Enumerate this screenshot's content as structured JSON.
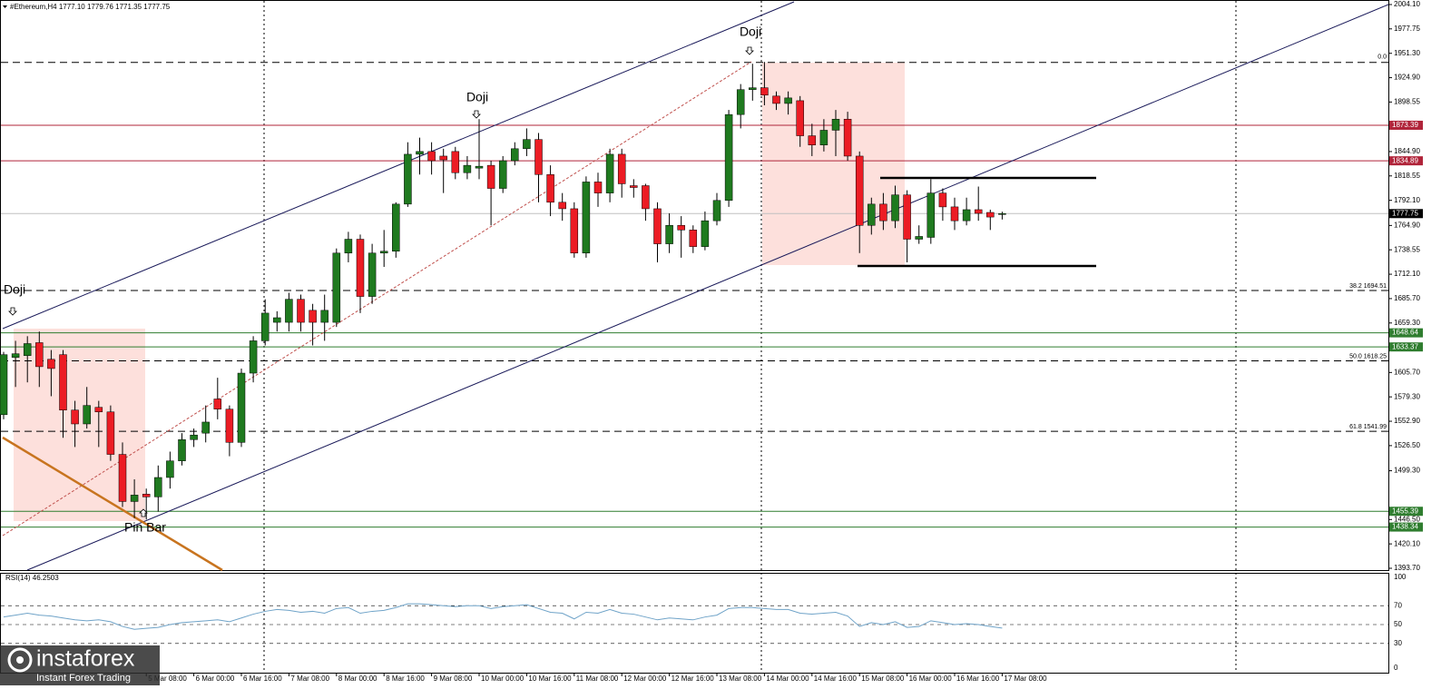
{
  "chart_data": {
    "type": "candlestick",
    "symbol": "#Ethereum,H4",
    "header_values": [
      "1777.10",
      "1779.76",
      "1771.35",
      "1777.75"
    ],
    "categories": [
      null,
      null,
      null,
      null,
      null,
      null,
      null,
      null,
      null,
      null,
      null,
      null,
      "5 Mar 08:00",
      null,
      null,
      null,
      "6 Mar 00:00",
      null,
      null,
      null,
      "6 Mar 16:00",
      null,
      null,
      null,
      "7 Mar 08:00",
      null,
      null,
      null,
      "8 Mar 00:00",
      null,
      null,
      null,
      "8 Mar 16:00",
      null,
      null,
      null,
      "9 Mar 08:00",
      null,
      null,
      null,
      "10 Mar 00:00",
      null,
      null,
      null,
      "10 Mar 16:00",
      null,
      null,
      null,
      "11 Mar 08:00",
      null,
      null,
      null,
      "12 Mar 00:00",
      null,
      null,
      null,
      "12 Mar 16:00",
      null,
      null,
      null,
      "13 Mar 08:00",
      null,
      null,
      null,
      "14 Mar 00:00",
      null,
      null,
      null,
      "14 Mar 16:00",
      null,
      null,
      null,
      "15 Mar 08:00",
      null,
      null,
      null,
      "16 Mar 00:00",
      null,
      null,
      null,
      "16 Mar 16:00",
      null,
      null,
      null,
      "17 Mar 08:00"
    ],
    "open": [
      1560,
      1622,
      1624,
      1638,
      1620,
      1625,
      1565,
      1550,
      1568,
      1563,
      1517,
      1466,
      1474,
      1471,
      1492,
      1510,
      1533,
      1540,
      1577,
      1566,
      1530,
      1605,
      1640,
      1660,
      1660,
      1685,
      1673,
      1660,
      1660,
      1735,
      1750,
      1688,
      1735,
      1737,
      1788,
      1842,
      1845,
      1840,
      1845,
      1822,
      1827,
      1830,
      1805,
      1835,
      1848,
      1858,
      1820,
      1790,
      1783,
      1735,
      1812,
      1800,
      1842,
      1808,
      1808,
      1783,
      1745,
      1765,
      1760,
      1742,
      1770,
      1792,
      1885,
      1912,
      1914,
      1905,
      1897,
      1900,
      1862,
      1852,
      1868,
      1880,
      1840,
      1765,
      1788,
      1770,
      1798,
      1750,
      1752,
      1800,
      1785,
      1770,
      1782,
      1779,
      1777.1
    ],
    "high": [
      1628,
      1640,
      1645,
      1650,
      1630,
      1630,
      1575,
      1590,
      1575,
      1570,
      1530,
      1490,
      1480,
      1505,
      1520,
      1540,
      1545,
      1570,
      1600,
      1570,
      1610,
      1645,
      1685,
      1672,
      1692,
      1690,
      1680,
      1690,
      1740,
      1758,
      1755,
      1745,
      1760,
      1790,
      1855,
      1860,
      1855,
      1848,
      1850,
      1840,
      1880,
      1835,
      1840,
      1855,
      1870,
      1865,
      1830,
      1800,
      1790,
      1818,
      1822,
      1848,
      1848,
      1815,
      1810,
      1790,
      1778,
      1775,
      1765,
      1780,
      1800,
      1890,
      1918,
      1940,
      1942,
      1910,
      1910,
      1905,
      1875,
      1880,
      1890,
      1888,
      1845,
      1795,
      1800,
      1808,
      1803,
      1765,
      1815,
      1805,
      1795,
      1795,
      1807,
      1782,
      1779.76
    ],
    "low": [
      1555,
      1590,
      1595,
      1590,
      1580,
      1535,
      1525,
      1545,
      1525,
      1510,
      1460,
      1448,
      1446.5,
      1455,
      1480,
      1505,
      1525,
      1530,
      1555,
      1515,
      1525,
      1595,
      1635,
      1650,
      1650,
      1650,
      1635,
      1640,
      1655,
      1725,
      1670,
      1680,
      1720,
      1730,
      1785,
      1820,
      1820,
      1800,
      1815,
      1815,
      1815,
      1765,
      1800,
      1830,
      1840,
      1790,
      1775,
      1770,
      1730,
      1730,
      1785,
      1790,
      1795,
      1795,
      1770,
      1725,
      1735,
      1730,
      1735,
      1738,
      1765,
      1785,
      1870,
      1900,
      1895,
      1890,
      1885,
      1850,
      1840,
      1845,
      1840,
      1835,
      1735,
      1755,
      1760,
      1762,
      1725,
      1745,
      1745,
      1770,
      1760,
      1765,
      1770,
      1760,
      1771.35
    ],
    "close": [
      1625,
      1626,
      1637,
      1612,
      1610,
      1565,
      1550,
      1570,
      1563,
      1517,
      1466,
      1473,
      1471,
      1492,
      1510,
      1533,
      1538,
      1552,
      1566,
      1530,
      1605,
      1640,
      1670,
      1665,
      1685,
      1660,
      1660,
      1673,
      1735,
      1750,
      1688,
      1735,
      1737,
      1788,
      1842,
      1845,
      1835,
      1836,
      1822,
      1830,
      1829,
      1805,
      1835,
      1848,
      1858,
      1820,
      1790,
      1783,
      1735,
      1812,
      1800,
      1842,
      1810,
      1806,
      1783,
      1745,
      1765,
      1760,
      1742,
      1770,
      1792,
      1885,
      1912,
      1914,
      1906,
      1897,
      1903,
      1862,
      1852,
      1868,
      1880,
      1840,
      1765,
      1788,
      1770,
      1798,
      1750,
      1753,
      1800,
      1785,
      1770,
      1782,
      1778,
      1774,
      1777.75
    ],
    "up_color": "#1f7a1f",
    "down_color": "#ec1c24",
    "ylim": [
      1393.7,
      2004.1
    ],
    "yticks": [
      {
        "value": 2004.1,
        "label": "2004.10"
      },
      1977.75,
      {
        "value": 1951.3,
        "label": "1951.30"
      },
      {
        "value": 1924.9,
        "label": "1924.90"
      },
      1898.55,
      {
        "value": 1844.9,
        "label": "1844.90"
      },
      1818.55,
      {
        "value": 1792.1,
        "label": "1792.10"
      },
      {
        "value": 1764.9,
        "label": "1764.90"
      },
      1738.55,
      {
        "value": 1712.1,
        "label": "1712.10"
      },
      {
        "value": 1685.7,
        "label": "1685.70"
      },
      {
        "value": 1659.3,
        "label": "1659.30"
      },
      {
        "value": 1605.7,
        "label": "1605.70"
      },
      {
        "value": 1579.3,
        "label": "1579.30"
      },
      {
        "value": 1552.9,
        "label": "1552.90"
      },
      {
        "value": 1526.5,
        "label": "1526.50"
      },
      {
        "value": 1499.3,
        "label": "1499.30"
      },
      {
        "value": 1446.5,
        "label": "1446.50"
      },
      {
        "value": 1420.1,
        "label": "1420.10"
      },
      {
        "value": 1393.7,
        "label": "1393.70"
      }
    ],
    "levels": [
      {
        "value": 1873.39,
        "color": "#b0243a"
      },
      {
        "value": 1834.89,
        "color": "#b0243a"
      },
      {
        "value": 1648.64,
        "color": "#2f7d2f"
      },
      {
        "value": 1633.37,
        "color": "#2f7d2f"
      },
      {
        "value": 1455.39,
        "color": "#2f7d2f"
      },
      {
        "value": 1438.34,
        "color": "#2f7d2f"
      }
    ],
    "fib_base": {
      "ratio": "0.0",
      "value": 1941.4
    },
    "fib_levels": [
      {
        "ratio": "38.2",
        "value": 1694.51
      },
      {
        "ratio": "50.0",
        "value": 1618.25
      },
      {
        "ratio": "61.8",
        "value": 1541.99
      }
    ],
    "annotations": [
      "Doji",
      "Doji",
      "Doji",
      "Pin Bar"
    ],
    "rsi": {
      "label": "RSI(14) 46.2503",
      "color": "#6fa3c8",
      "ylim": [
        0,
        100
      ],
      "yticks": [
        100,
        70,
        50,
        30,
        0
      ],
      "values": [
        58,
        60,
        62,
        60,
        59,
        57,
        55,
        54,
        55,
        53,
        48,
        45,
        46,
        47,
        50,
        52,
        53,
        54,
        55,
        53,
        57,
        61,
        64,
        66,
        65,
        63,
        64,
        62,
        67,
        68,
        62,
        64,
        65,
        68,
        72,
        72,
        71,
        70,
        69,
        70,
        70,
        67,
        69,
        70,
        71,
        67,
        63,
        62,
        56,
        63,
        62,
        66,
        62,
        61,
        58,
        55,
        57,
        56,
        55,
        58,
        60,
        67,
        68,
        68,
        67,
        66,
        66,
        62,
        61,
        62,
        63,
        59,
        48,
        52,
        50,
        53,
        47,
        48,
        54,
        52,
        50,
        51,
        50,
        48,
        46.25
      ]
    },
    "watermark": {
      "brand": "instaforex",
      "tagline": "Instant Forex Trading"
    }
  }
}
